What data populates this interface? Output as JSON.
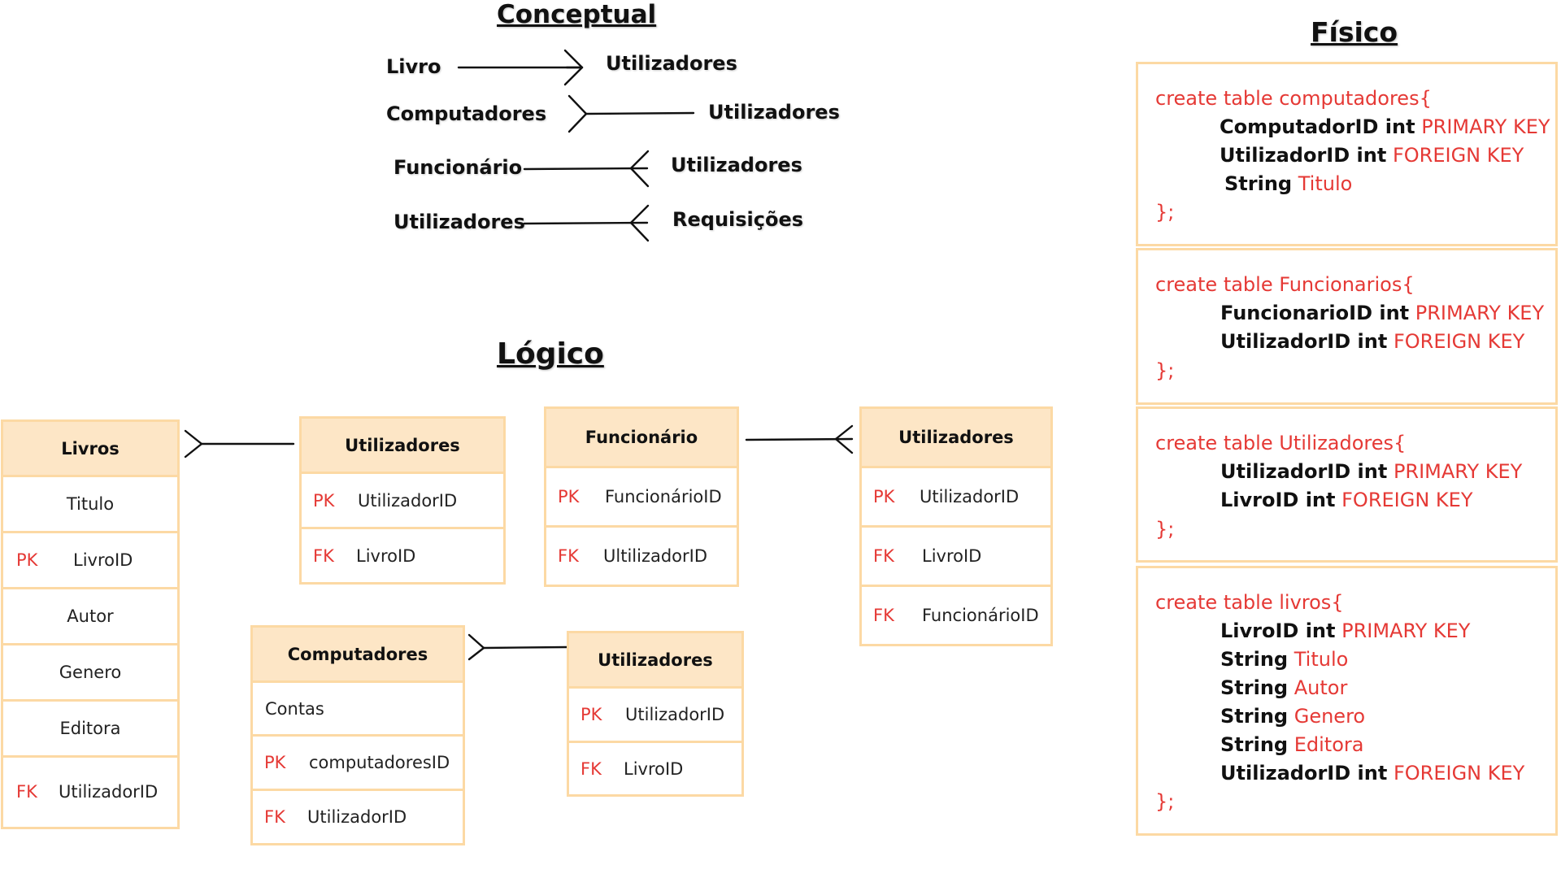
{
  "headings": {
    "conceptual": "Conceptual",
    "logico": "Lógico",
    "fisico": "Físico"
  },
  "conceptual": [
    {
      "left": "Livro",
      "right": "Utilizadores"
    },
    {
      "left": "Computadores",
      "right": "Utilizadores"
    },
    {
      "left": "Funcionário",
      "right": "Utilizadores"
    },
    {
      "left": "Utilizadores",
      "right": "Requisições"
    }
  ],
  "logical": {
    "livros": {
      "title": "Livros",
      "rows": [
        {
          "key": "",
          "name": "Titulo"
        },
        {
          "key": "PK",
          "name": "LivroID"
        },
        {
          "key": "",
          "name": "Autor"
        },
        {
          "key": "",
          "name": "Genero"
        },
        {
          "key": "",
          "name": "Editora"
        },
        {
          "key": "FK",
          "name": "UtilizadorID"
        }
      ]
    },
    "utilizadores1": {
      "title": "Utilizadores",
      "rows": [
        {
          "key": "PK",
          "name": "UtilizadorID"
        },
        {
          "key": "FK",
          "name": "LivroID"
        }
      ]
    },
    "funcionario": {
      "title": "Funcionário",
      "rows": [
        {
          "key": "PK",
          "name": "FuncionárioID"
        },
        {
          "key": "FK",
          "name": "UltilizadorID"
        }
      ]
    },
    "utilizadores2": {
      "title": "Utilizadores",
      "rows": [
        {
          "key": "PK",
          "name": "UtilizadorID"
        },
        {
          "key": "FK",
          "name": "LivroID"
        },
        {
          "key": "FK",
          "name": "FuncionárioID"
        }
      ]
    },
    "computadores": {
      "title": "Computadores",
      "rows": [
        {
          "key": "",
          "name": "Contas"
        },
        {
          "key": "PK",
          "name": "computadoresID"
        },
        {
          "key": "FK",
          "name": "UtilizadorID"
        }
      ]
    },
    "utilizadores3": {
      "title": "Utilizadores",
      "rows": [
        {
          "key": "PK",
          "name": "UtilizadorID"
        },
        {
          "key": "FK",
          "name": "LivroID"
        }
      ]
    }
  },
  "physical": [
    {
      "open": "create table computadores{",
      "lines": [
        {
          "name": "ComputadorID int",
          "type": "PRIMARY KEY"
        },
        {
          "name": "UtilizadorID int",
          "type": "FOREIGN KEY"
        },
        {
          "name": "String",
          "type": "Titulo"
        }
      ],
      "close": "};"
    },
    {
      "open": "create table Funcionarios{",
      "lines": [
        {
          "name": "FuncionarioID int",
          "type": "PRIMARY KEY"
        },
        {
          "name": "UtilizadorID int",
          "type": "FOREIGN KEY"
        }
      ],
      "close": "};"
    },
    {
      "open": "create table Utilizadores{",
      "lines": [
        {
          "name": "UtilizadorID int",
          "type": "PRIMARY KEY"
        },
        {
          "name": "LivroID int",
          "type": "FOREIGN KEY"
        }
      ],
      "close": "};"
    },
    {
      "open": "create table livros{",
      "lines": [
        {
          "name": "LivroID int",
          "type": "PRIMARY KEY"
        },
        {
          "name": "String",
          "type": "Titulo"
        },
        {
          "name": "String",
          "type": "Autor"
        },
        {
          "name": "String",
          "type": "Genero"
        },
        {
          "name": "String",
          "type": "Editora"
        },
        {
          "name": "UtilizadorID int",
          "type": "FOREIGN KEY"
        }
      ],
      "close": "};"
    }
  ]
}
